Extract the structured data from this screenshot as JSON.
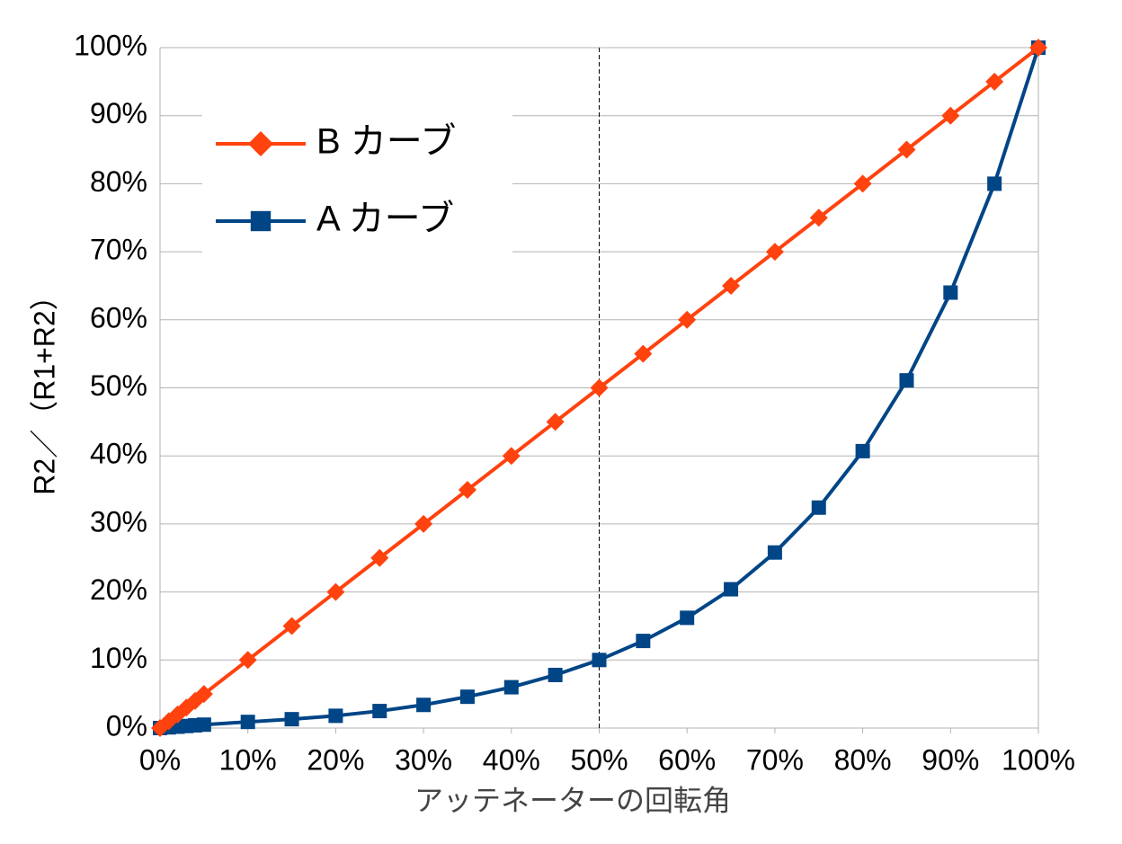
{
  "chart_data": {
    "type": "line",
    "x_label": "アッテネーターの回転角",
    "y_label": "R2／（R1+R2）",
    "x": [
      0,
      1,
      2,
      3,
      4,
      5,
      10,
      15,
      20,
      25,
      30,
      35,
      40,
      45,
      50,
      55,
      60,
      65,
      70,
      75,
      80,
      85,
      90,
      95,
      100
    ],
    "series": [
      {
        "name": "B カーブ",
        "color": "#ff420e",
        "marker": "diamond",
        "values": [
          0,
          1,
          2,
          3,
          4,
          5,
          10,
          15,
          20,
          25,
          30,
          35,
          40,
          45,
          50,
          55,
          60,
          65,
          70,
          75,
          80,
          85,
          90,
          95,
          100
        ]
      },
      {
        "name": "A カーブ",
        "color": "#004586",
        "marker": "square",
        "values": [
          0,
          0.1,
          0.2,
          0.3,
          0.4,
          0.5,
          0.9,
          1.3,
          1.8,
          2.5,
          3.4,
          4.6,
          6,
          7.8,
          10,
          12.8,
          16.2,
          20.4,
          25.8,
          32.4,
          40.7,
          51.1,
          64,
          80,
          100
        ]
      }
    ],
    "xlim": [
      0,
      100
    ],
    "ylim": [
      0,
      100
    ],
    "xticks": [
      {
        "value": 0,
        "label": "0%"
      },
      {
        "value": 10,
        "label": "10%"
      },
      {
        "value": 20,
        "label": "20%"
      },
      {
        "value": 30,
        "label": "30%"
      },
      {
        "value": 40,
        "label": "40%"
      },
      {
        "value": 50,
        "label": "50%"
      },
      {
        "value": 60,
        "label": "60%"
      },
      {
        "value": 70,
        "label": "70%"
      },
      {
        "value": 80,
        "label": "80%"
      },
      {
        "value": 90,
        "label": "90%"
      },
      {
        "value": 100,
        "label": "100%"
      }
    ],
    "yticks": [
      {
        "value": 0,
        "label": "0%"
      },
      {
        "value": 10,
        "label": "10%"
      },
      {
        "value": 20,
        "label": "20%"
      },
      {
        "value": 30,
        "label": "30%"
      },
      {
        "value": 40,
        "label": "40%"
      },
      {
        "value": 50,
        "label": "50%"
      },
      {
        "value": 60,
        "label": "60%"
      },
      {
        "value": 70,
        "label": "70%"
      },
      {
        "value": 80,
        "label": "80%"
      },
      {
        "value": 90,
        "label": "90%"
      },
      {
        "value": 100,
        "label": "100%"
      }
    ],
    "reference_line_x": 50,
    "grid": true,
    "legend": "upper left"
  }
}
